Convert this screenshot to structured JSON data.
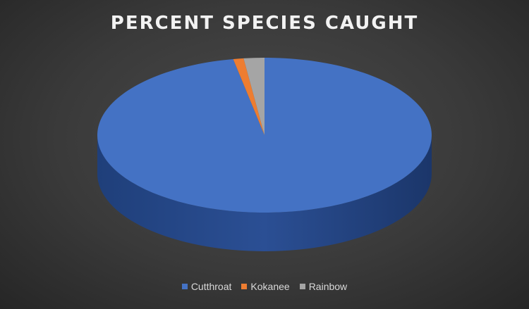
{
  "chart_data": {
    "type": "pie",
    "title": "PERCENT SPECIES CAUGHT",
    "categories": [
      "Cutthroat",
      "Kokanee",
      "Rainbow"
    ],
    "values": [
      97,
      1,
      2
    ],
    "colors": [
      "#4472c4",
      "#ed7d31",
      "#a5a5a5"
    ],
    "legend_position": "bottom"
  }
}
